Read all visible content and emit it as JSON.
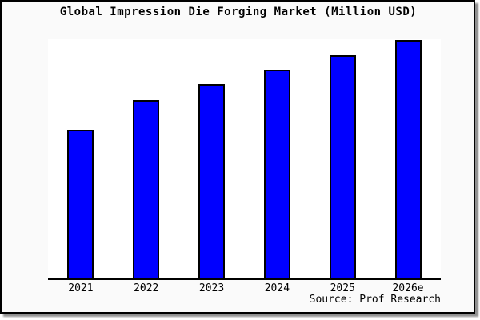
{
  "title": "Global Impression Die Forging Market (Million USD)",
  "source": "Source: Prof Research",
  "colors": {
    "bar_fill": "#0000ff",
    "bar_border": "#000000",
    "frame_background": "#fafafa",
    "plot_background": "#ffffff",
    "axis": "#000000",
    "shadow": "#8f8f8f"
  },
  "chart_data": {
    "type": "bar",
    "title": "Global Impression Die Forging Market (Million USD)",
    "categories": [
      "2021",
      "2022",
      "2023",
      "2024",
      "2025",
      "2026e"
    ],
    "values": [
      187,
      224,
      244,
      262,
      280,
      299
    ],
    "values_note": "relative heights estimated from pixels; chart shows no y-axis tick labels or gridlines",
    "xlabel": "",
    "ylabel": "",
    "ylim": [
      0,
      300
    ],
    "grid": false,
    "legend": "none",
    "annotations": [
      "Source: Prof Research"
    ]
  }
}
